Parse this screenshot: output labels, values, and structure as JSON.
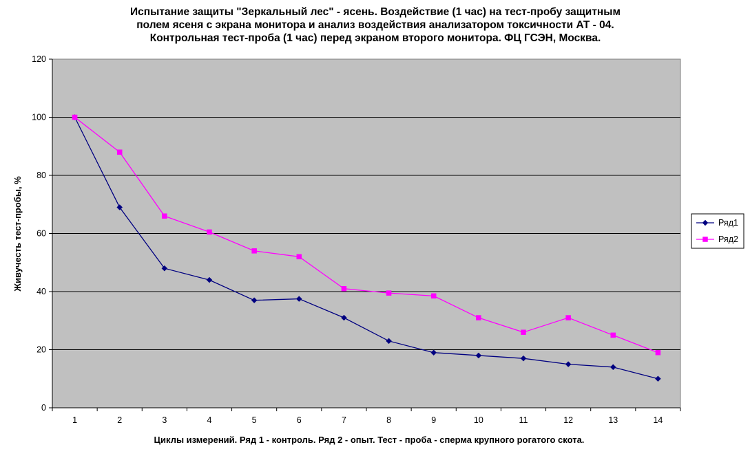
{
  "chart_data": {
    "type": "line",
    "title": [
      "Испытание защиты \"Зеркальный лес\" - ясень. Воздействие (1 час) на тест-пробу защитным",
      "полем ясеня с экрана монитора и анализ воздействия анализатором токсичности АТ - 04.",
      "Контрольная тест-проба (1 час) перед экраном второго монитора. ФЦ ГСЭН, Москва."
    ],
    "xlabel": "Циклы измерений. Ряд 1 - контроль. Ряд 2 - опыт. Тест - проба - сперма крупного рогатого скота.",
    "ylabel": "Живучесть тест-пробы, %",
    "categories": [
      "1",
      "2",
      "3",
      "4",
      "5",
      "6",
      "7",
      "8",
      "9",
      "10",
      "11",
      "12",
      "13",
      "14"
    ],
    "ylim": [
      0,
      120
    ],
    "yticks": [
      "0",
      "20",
      "40",
      "60",
      "80",
      "100",
      "120"
    ],
    "grid": true,
    "legend_position": "right",
    "plot_background": "#c0c0c0",
    "series": [
      {
        "name": "Ряд1",
        "color": "#000080",
        "marker": "diamond",
        "values": [
          100,
          69,
          48,
          44,
          37,
          37.5,
          31,
          23,
          19,
          18,
          17,
          15,
          14,
          10
        ]
      },
      {
        "name": "Ряд2",
        "color": "#ff00ff",
        "marker": "square",
        "values": [
          100,
          88,
          66,
          60.5,
          54,
          52,
          41,
          39.5,
          38.5,
          31,
          26,
          31,
          25,
          19
        ]
      }
    ]
  }
}
